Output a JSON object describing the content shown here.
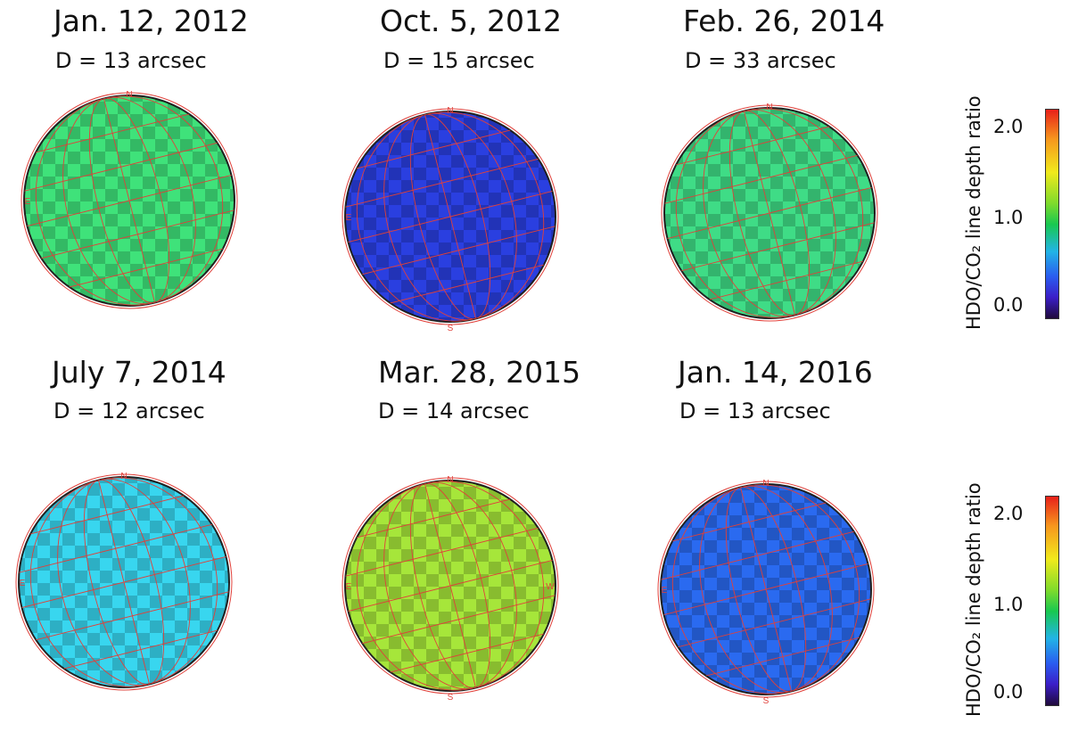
{
  "panels": [
    {
      "date": "Jan. 12, 2012",
      "diameter": "D = 13 arcsec",
      "fill": "#3fe27a",
      "points": [
        "N",
        "E"
      ]
    },
    {
      "date": "Oct. 5, 2012",
      "diameter": "D = 15 arcsec",
      "fill": "#2a3fe0",
      "points": [
        "N",
        "E",
        "S"
      ]
    },
    {
      "date": "Feb. 26, 2014",
      "diameter": "D = 33 arcsec",
      "fill": "#3fdc86",
      "points": [
        "N"
      ]
    },
    {
      "date": "July 7, 2014",
      "diameter": "D = 12 arcsec",
      "fill": "#38d6ef",
      "points": [
        "N",
        "E"
      ]
    },
    {
      "date": "Mar. 28, 2015",
      "diameter": "D = 14 arcsec",
      "fill": "#a6e63a",
      "points": [
        "N",
        "E",
        "S",
        "W"
      ]
    },
    {
      "date": "Jan. 14, 2016",
      "diameter": "D = 13 arcsec",
      "fill": "#2a6af0",
      "points": [
        "N",
        "E",
        "S"
      ]
    }
  ],
  "colorbar": {
    "title": "HDO/CO₂ line depth ratio",
    "ticks": [
      "2.0",
      "1.0",
      "0.0"
    ],
    "scale_min": 0.0,
    "scale_max": 2.2
  },
  "colors": {
    "grid_lines": "#e0403a",
    "contour_lines": "#222222"
  }
}
